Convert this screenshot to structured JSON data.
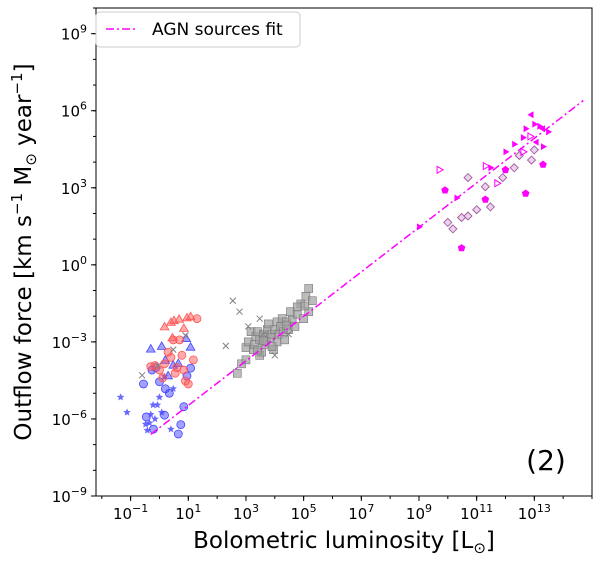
{
  "chart_data": {
    "type": "scatter",
    "title": "",
    "panel_label": "(2)",
    "xlabel": {
      "main": "Bolometric luminosity [L",
      "sub": "⊙",
      "tail": "]"
    },
    "ylabel": {
      "p1": "Outflow force [km s",
      "e1": "−1",
      "p2": " M",
      "sub": "⊙",
      "p3": " year",
      "e2": "−1",
      "p4": "]"
    },
    "x_scale": "log",
    "y_scale": "log",
    "xlim": [
      0.0063,
      1000000000000000.0
    ],
    "ylim": [
      1e-09,
      10000000000.0
    ],
    "x_ticks": [
      {
        "value": 0.1,
        "base": "10",
        "exp": "−1"
      },
      {
        "value": 10,
        "base": "10",
        "exp": "1"
      },
      {
        "value": 1000,
        "base": "10",
        "exp": "3"
      },
      {
        "value": 100000,
        "base": "10",
        "exp": "5"
      },
      {
        "value": 10000000.0,
        "base": "10",
        "exp": "7"
      },
      {
        "value": 1000000000.0,
        "base": "10",
        "exp": "9"
      },
      {
        "value": 100000000000.0,
        "base": "10",
        "exp": "11"
      },
      {
        "value": 10000000000000.0,
        "base": "10",
        "exp": "13"
      }
    ],
    "y_ticks": [
      {
        "value": 1e-09,
        "base": "10",
        "exp": "−9"
      },
      {
        "value": 1e-06,
        "base": "10",
        "exp": "−6"
      },
      {
        "value": 0.001,
        "base": "10",
        "exp": "−3"
      },
      {
        "value": 1,
        "base": "10",
        "exp": "0"
      },
      {
        "value": 1000,
        "base": "10",
        "exp": "3"
      },
      {
        "value": 1000000.0,
        "base": "10",
        "exp": "6"
      },
      {
        "value": 1000000000.0,
        "base": "10",
        "exp": "9"
      }
    ],
    "grid": false,
    "legend": {
      "position": "top-left",
      "entries": [
        {
          "label": "AGN sources fit",
          "style": "dash-dot",
          "color": "#ff00ff"
        }
      ]
    },
    "fit_line": {
      "name": "AGN sources fit",
      "color": "#ff00ff",
      "x": [
        0.5,
        500000000000000.0
      ],
      "y": [
        2.5e-07,
        2500000.0
      ]
    },
    "colors": {
      "red": "#ff5555",
      "blue": "#4444ff",
      "gray": "#a0a0a0",
      "magenta": "#ff00ff",
      "purple": "#a05aa0"
    },
    "series": [
      {
        "group": "blue-circle",
        "marker": "circle",
        "color": "#4444ff",
        "alpha": 0.5,
        "points": [
          [
            0.28,
            2.3e-05
          ],
          [
            0.35,
            1.2e-06
          ],
          [
            0.55,
            8e-05
          ],
          [
            0.75,
            0.0001
          ],
          [
            1.0,
            2.8e-05
          ],
          [
            1.5,
            1.4e-06
          ],
          [
            2.2,
            1e-05
          ],
          [
            4.5,
            2.6e-07
          ],
          [
            5.5,
            6e-07
          ],
          [
            7,
            3e-06
          ],
          [
            9,
            4.7e-05
          ],
          [
            12,
            9.5e-05
          ],
          [
            1.6,
            1.5e-05
          ],
          [
            0.62,
            4e-07
          ]
        ]
      },
      {
        "group": "blue-star",
        "marker": "star",
        "color": "#4444ff",
        "alpha": 0.8,
        "points": [
          [
            0.045,
            7e-06
          ],
          [
            0.075,
            1.8e-06
          ],
          [
            0.38,
            3.6e-07
          ],
          [
            0.45,
            7e-07
          ],
          [
            0.5,
            1.5e-06
          ],
          [
            0.6,
            3.5e-06
          ],
          [
            0.7,
            1e-06
          ],
          [
            0.85,
            3.5e-06
          ],
          [
            1.0,
            7e-06
          ],
          [
            1.2,
            1.8e-06
          ],
          [
            1.5,
            4.5e-05
          ],
          [
            2.5,
            4e-07
          ],
          [
            3,
            1.5e-05
          ],
          [
            0.33,
            6.2e-07
          ]
        ]
      },
      {
        "group": "blue-triangle",
        "marker": "triangle",
        "color": "#4444ff",
        "alpha": 0.5,
        "points": [
          [
            0.5,
            0.00055
          ],
          [
            1.2,
            0.0007
          ],
          [
            1.6,
            0.0002
          ],
          [
            2,
            5e-05
          ],
          [
            3,
            0.00013
          ],
          [
            4.5,
            0.00015
          ],
          [
            8.5,
            0.0014
          ],
          [
            12,
            0.00065
          ]
        ]
      },
      {
        "group": "red-circle",
        "marker": "circle",
        "color": "#ff5555",
        "alpha": 0.5,
        "points": [
          [
            0.5,
            0.00011
          ],
          [
            0.7,
            0.00012
          ],
          [
            1,
            8e-05
          ],
          [
            1.3,
            4e-05
          ],
          [
            1.5,
            0.00014
          ],
          [
            2,
            0.0004
          ],
          [
            2.5,
            0.00025
          ],
          [
            3,
            0.0012
          ],
          [
            3.5,
            6e-05
          ],
          [
            4,
            0.0001
          ],
          [
            5,
            0.0012
          ],
          [
            6,
            0.0003
          ],
          [
            7,
            8e-05
          ],
          [
            10,
            2.3e-05
          ],
          [
            20,
            0.008
          ],
          [
            15,
            0.0002
          ],
          [
            8,
            3e-05
          ]
        ]
      },
      {
        "group": "red-triangle",
        "marker": "triangle",
        "color": "#ff5555",
        "alpha": 0.5,
        "points": [
          [
            1.5,
            0.004
          ],
          [
            2.5,
            0.006
          ],
          [
            3.2,
            0.007
          ],
          [
            4.8,
            0.008
          ],
          [
            7,
            0.0035
          ],
          [
            12,
            0.01
          ],
          [
            9,
            0.009
          ],
          [
            2.8,
            0.0015
          ]
        ]
      },
      {
        "group": "gray-square",
        "marker": "square",
        "color": "#a0a0a0",
        "alpha": 0.7,
        "points": [
          [
            500,
            6e-05
          ],
          [
            700,
            0.00014
          ],
          [
            1000,
            0.0002
          ],
          [
            1000,
            0.0006
          ],
          [
            1200,
            0.001
          ],
          [
            1500,
            0.0025
          ],
          [
            1800,
            0.0005
          ],
          [
            2000,
            0.0008
          ],
          [
            2200,
            0.0016
          ],
          [
            2500,
            0.0025
          ],
          [
            3000,
            0.0003
          ],
          [
            3000,
            0.0012
          ],
          [
            3500,
            0.0004
          ],
          [
            4000,
            0.002
          ],
          [
            4500,
            0.0008
          ],
          [
            5000,
            0.001
          ],
          [
            5500,
            0.003
          ],
          [
            6000,
            0.005
          ],
          [
            7000,
            0.0015
          ],
          [
            8000,
            0.002
          ],
          [
            9000,
            0.0005
          ],
          [
            10000,
            0.003
          ],
          [
            12000,
            0.001
          ],
          [
            12000,
            0.006
          ],
          [
            14000,
            0.002
          ],
          [
            16000,
            0.004
          ],
          [
            18000,
            0.008
          ],
          [
            20000,
            0.0025
          ],
          [
            22000,
            0.0012
          ],
          [
            25000,
            0.006
          ],
          [
            30000,
            0.003
          ],
          [
            35000,
            0.015
          ],
          [
            40000,
            0.007
          ],
          [
            50000,
            0.004
          ],
          [
            60000,
            0.012
          ],
          [
            80000,
            0.03
          ],
          [
            100000,
            0.008
          ],
          [
            120000,
            0.06
          ],
          [
            150000,
            0.015
          ],
          [
            200000,
            0.04
          ],
          [
            150000,
            0.12
          ],
          [
            8000,
            0.00065
          ],
          [
            4000,
            0.0011
          ],
          [
            60000,
            0.023
          ],
          [
            25000,
            0.0045
          ],
          [
            110000,
            0.025
          ],
          [
            2500,
            0.00048
          ]
        ]
      },
      {
        "group": "gray-cross",
        "marker": "cross",
        "color": "#808080",
        "alpha": 1.0,
        "points": [
          [
            0.25,
            5e-05
          ],
          [
            0.9,
            0.00012
          ],
          [
            3,
            0.0005
          ],
          [
            8,
            0.0018
          ],
          [
            200,
            0.0007
          ],
          [
            350,
            0.04
          ],
          [
            600,
            0.015
          ],
          [
            1200,
            0.004
          ],
          [
            3000,
            0.008
          ],
          [
            4000,
            0.002
          ],
          [
            10000,
            0.0003
          ],
          [
            30000,
            0.002
          ]
        ]
      },
      {
        "group": "purple-diamond",
        "marker": "diamond",
        "color": "#a05aa0",
        "alpha": 0.8,
        "points": [
          [
            10000000000.0,
            45
          ],
          [
            15000000000.0,
            25
          ],
          [
            30000000000.0,
            70
          ],
          [
            50000000000.0,
            80
          ],
          [
            100000000000.0,
            140
          ],
          [
            300000000000.0,
            180
          ],
          [
            50000000000.0,
            2500
          ],
          [
            200000000000.0,
            1100
          ],
          [
            800000000000.0,
            2500
          ],
          [
            2000000000000.0,
            6000
          ],
          [
            3000000000000.0,
            18000
          ],
          [
            8000000000000.0,
            12000
          ],
          [
            10000000000000.0,
            30000
          ]
        ]
      },
      {
        "group": "magenta-filled-triangle",
        "marker": "triangle-right",
        "color": "#ff00ff",
        "alpha": 1.0,
        "points": [
          [
            1000000000.0,
            30
          ],
          [
            20000000000.0,
            400
          ],
          [
            300000000000.0,
            6000
          ],
          [
            1000000000000.0,
            25000
          ],
          [
            2000000000000.0,
            50000
          ],
          [
            4000000000000.0,
            90000
          ],
          [
            10000000000000.0,
            300000
          ],
          [
            30000000000000.0,
            150000
          ],
          [
            5000000000000.0,
            200000
          ],
          [
            20000000000000.0,
            40000
          ],
          [
            15000000000000.0,
            250000
          ]
        ]
      },
      {
        "group": "magenta-filled-triangle-left",
        "marker": "triangle-left",
        "color": "#ff00ff",
        "alpha": 1.0,
        "points": [
          [
            8000000000000.0,
            700000
          ],
          [
            20000000000000.0,
            200000
          ],
          [
            12000000000000.0,
            60000
          ]
        ]
      },
      {
        "group": "magenta-pentagon",
        "marker": "pentagon",
        "color": "#ff00ff",
        "alpha": 1.0,
        "points": [
          [
            30000000000.0,
            4.5
          ],
          [
            8000000000.0,
            800
          ],
          [
            200000000000.0,
            350
          ],
          [
            1000000000000.0,
            5000
          ],
          [
            20000000000000.0,
            8000
          ],
          [
            5000000000000.0,
            600
          ]
        ]
      },
      {
        "group": "magenta-open-triangle",
        "marker": "open-triangle-right",
        "color": "#ff00ff",
        "alpha": 1.0,
        "points": [
          [
            5000000000.0,
            5000
          ],
          [
            200000000000.0,
            7000
          ],
          [
            500000000000.0,
            1500
          ],
          [
            4000000000000.0,
            25000
          ],
          [
            7000000000000.0,
            100000
          ]
        ]
      }
    ]
  }
}
